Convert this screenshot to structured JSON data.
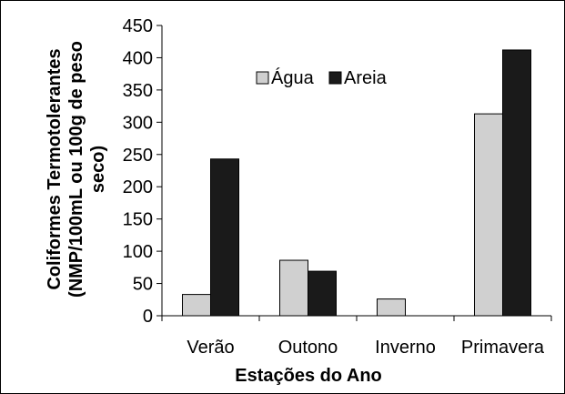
{
  "chart_data": {
    "type": "bar",
    "title": "",
    "xlabel": "Estações do Ano",
    "ylabel_lines": [
      "Coliformes Termotolerantes",
      "(NMP/100mL ou 100g de peso",
      "seco)"
    ],
    "categories": [
      "Verão",
      "Outono",
      "Inverno",
      "Primavera"
    ],
    "series": [
      {
        "name": "Água",
        "color": "#d0d0d0",
        "values": [
          33,
          86,
          26,
          313
        ]
      },
      {
        "name": "Areia",
        "color": "#1a1a1a",
        "values": [
          243,
          69,
          0,
          412
        ]
      }
    ],
    "ylim": [
      0,
      450
    ],
    "yticks": [
      0,
      50,
      100,
      150,
      200,
      250,
      300,
      350,
      400,
      450
    ],
    "grid": false,
    "legend_position": "top-center"
  }
}
